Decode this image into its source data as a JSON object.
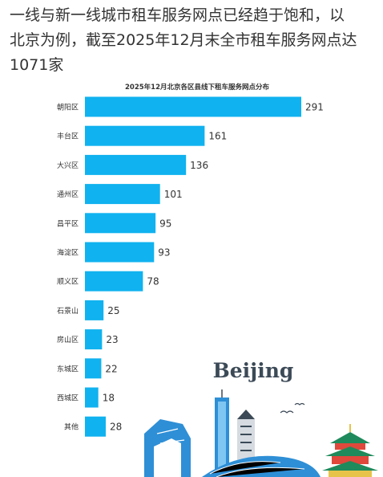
{
  "article": {
    "headline_line1": "一线与新一线城市租车服务网点已经趋于饱和，以",
    "headline_line2": "北京为例，截至2025年12月末全市租车服务网点达",
    "headline_line3": "1071家"
  },
  "illustration": {
    "label": "Beijing"
  },
  "colors": {
    "bar": "#10b2ef",
    "text": "#333333",
    "skyline": "#2e8fd6"
  },
  "chart_data": {
    "type": "bar",
    "orientation": "horizontal",
    "title": "2025年12月北京各区县线下租车服务网点分布",
    "categories": [
      "朝阳区",
      "丰台区",
      "大兴区",
      "通州区",
      "昌平区",
      "海淀区",
      "顺义区",
      "石景山",
      "房山区",
      "东城区",
      "西城区",
      "其他"
    ],
    "values": [
      291,
      161,
      136,
      101,
      95,
      93,
      78,
      25,
      23,
      22,
      18,
      28
    ],
    "value_labels": [
      "291",
      "161",
      "136",
      "101",
      "95",
      "93",
      "78",
      "25",
      "23",
      "22",
      "18",
      "28"
    ],
    "xlabel": "",
    "ylabel": "",
    "grid": false,
    "legend": "none"
  }
}
